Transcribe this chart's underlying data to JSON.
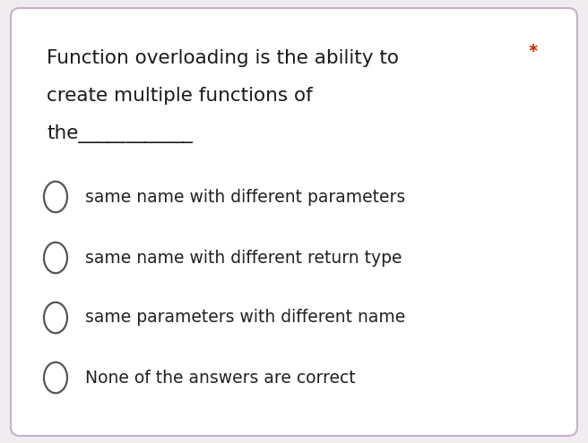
{
  "background_color": "#f0ecf0",
  "card_color": "#ffffff",
  "card_border_color": "#c8b0c8",
  "question_line1": "Function overloading is the ability to",
  "question_line2": "create multiple functions of",
  "question_line3": "the____________",
  "asterisk": "*",
  "asterisk_color": "#cc2200",
  "options": [
    "same name with different parameters",
    "same name with different return type",
    "same parameters with different name",
    "None of the answers are correct"
  ],
  "option_circle_color": "#555555",
  "option_text_color": "#222222",
  "question_text_color": "#1a1a1a",
  "font_size_question": 15.5,
  "font_size_options": 13.5,
  "font_size_asterisk": 14
}
